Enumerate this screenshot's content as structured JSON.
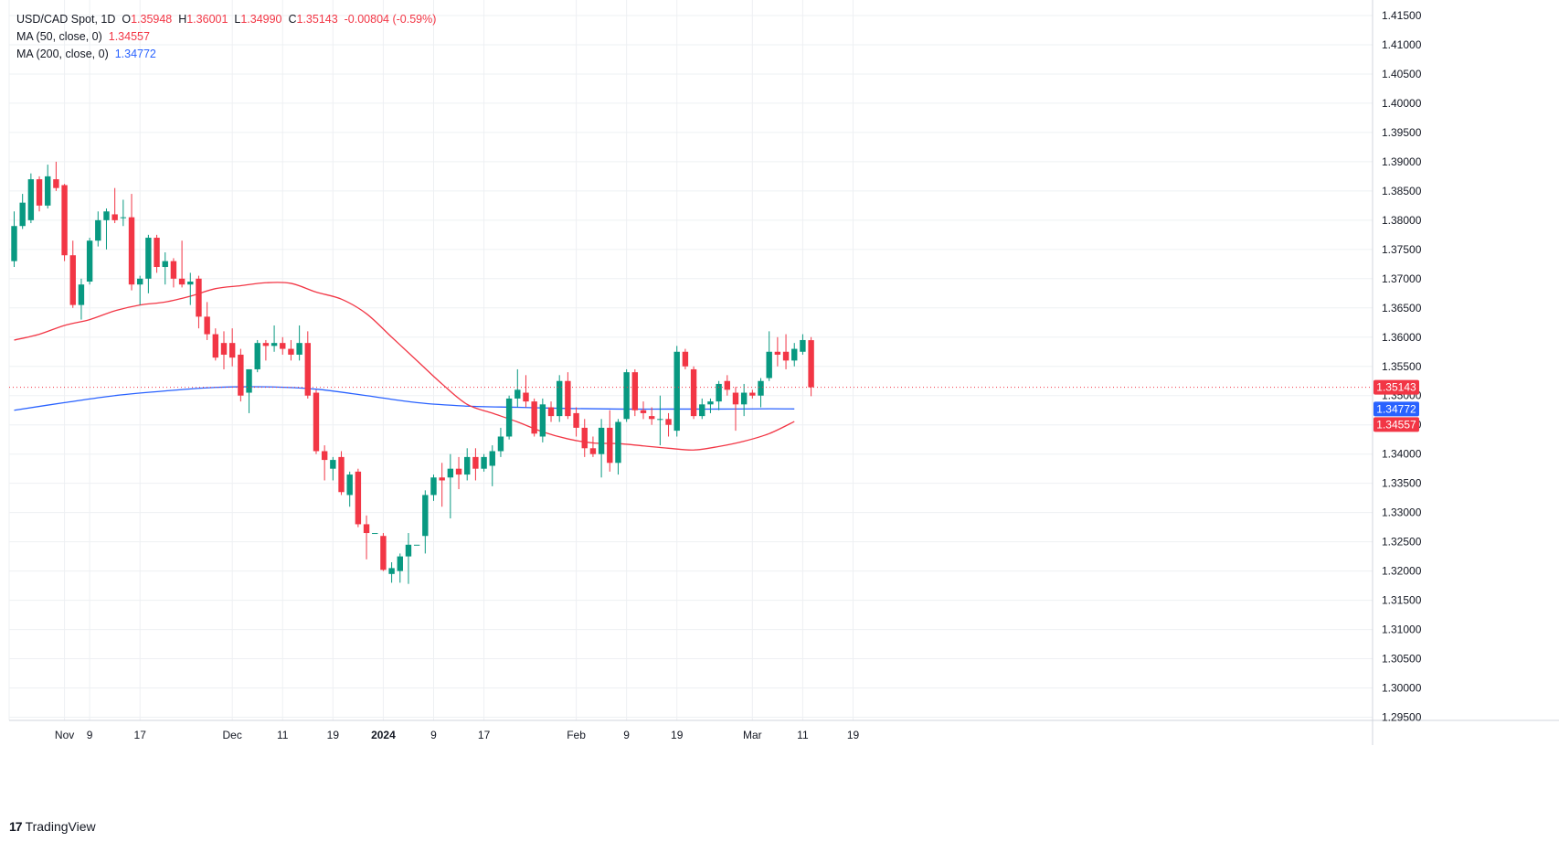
{
  "legend": {
    "symbol": "USD/CAD Spot, 1D",
    "o_label": "O",
    "o": "1.35948",
    "h_label": "H",
    "h": "1.36001",
    "l_label": "L",
    "l": "1.34990",
    "c_label": "C",
    "c": "1.35143",
    "change": "-0.00804 (-0.59%)",
    "ma50_label": "MA (50, close, 0)",
    "ma50_value": "1.34557",
    "ma200_label": "MA (200, close, 0)",
    "ma200_value": "1.34772"
  },
  "branding": {
    "name": "TradingView",
    "mark": "17"
  },
  "colors": {
    "up": "#089981",
    "down": "#f23645",
    "ma50": "#f23645",
    "ma200": "#2962ff",
    "grid": "#eef0f3",
    "axis_text": "#131722"
  },
  "chart_data": {
    "type": "candlestick",
    "title": "USD/CAD Spot, 1D",
    "ylim": [
      1.2925,
      1.4175
    ],
    "y_ticks": [
      "1.29500",
      "1.30000",
      "1.30500",
      "1.31000",
      "1.31500",
      "1.32000",
      "1.32500",
      "1.33000",
      "1.33500",
      "1.34000",
      "1.34500",
      "1.35000",
      "1.35500",
      "1.36000",
      "1.36500",
      "1.37000",
      "1.37500",
      "1.38000",
      "1.38500",
      "1.39000",
      "1.39500",
      "1.40000",
      "1.40500",
      "1.41000",
      "1.41500"
    ],
    "x_ticks": [
      {
        "label": "Nov",
        "day": 6,
        "bold": false
      },
      {
        "label": "9",
        "day": 9,
        "bold": false
      },
      {
        "label": "17",
        "day": 15,
        "bold": false
      },
      {
        "label": "Dec",
        "day": 26,
        "bold": false
      },
      {
        "label": "11",
        "day": 32,
        "bold": false
      },
      {
        "label": "19",
        "day": 38,
        "bold": false
      },
      {
        "label": "2024",
        "day": 44,
        "bold": true
      },
      {
        "label": "9",
        "day": 50,
        "bold": false
      },
      {
        "label": "17",
        "day": 56,
        "bold": false
      },
      {
        "label": "Feb",
        "day": 67,
        "bold": false
      },
      {
        "label": "9",
        "day": 73,
        "bold": false
      },
      {
        "label": "19",
        "day": 79,
        "bold": false
      },
      {
        "label": "Mar",
        "day": 88,
        "bold": false
      },
      {
        "label": "11",
        "day": 94,
        "bold": false
      },
      {
        "label": "19",
        "day": 100,
        "bold": false
      }
    ],
    "candles": [
      {
        "o": 1.373,
        "h": 1.3815,
        "l": 1.372,
        "c": 1.379
      },
      {
        "o": 1.379,
        "h": 1.3845,
        "l": 1.3785,
        "c": 1.383
      },
      {
        "o": 1.38,
        "h": 1.388,
        "l": 1.3795,
        "c": 1.387
      },
      {
        "o": 1.387,
        "h": 1.3875,
        "l": 1.3815,
        "c": 1.3825
      },
      {
        "o": 1.3825,
        "h": 1.3895,
        "l": 1.382,
        "c": 1.3875
      },
      {
        "o": 1.387,
        "h": 1.39,
        "l": 1.385,
        "c": 1.3855
      },
      {
        "o": 1.386,
        "h": 1.3862,
        "l": 1.373,
        "c": 1.374
      },
      {
        "o": 1.374,
        "h": 1.3765,
        "l": 1.365,
        "c": 1.3655
      },
      {
        "o": 1.3655,
        "h": 1.37,
        "l": 1.363,
        "c": 1.369
      },
      {
        "o": 1.3695,
        "h": 1.377,
        "l": 1.369,
        "c": 1.3765
      },
      {
        "o": 1.3765,
        "h": 1.3815,
        "l": 1.3755,
        "c": 1.38
      },
      {
        "o": 1.38,
        "h": 1.382,
        "l": 1.375,
        "c": 1.3815
      },
      {
        "o": 1.381,
        "h": 1.3855,
        "l": 1.3795,
        "c": 1.38
      },
      {
        "o": 1.3805,
        "h": 1.3835,
        "l": 1.379,
        "c": 1.3805
      },
      {
        "o": 1.3805,
        "h": 1.3845,
        "l": 1.368,
        "c": 1.369
      },
      {
        "o": 1.369,
        "h": 1.3705,
        "l": 1.3655,
        "c": 1.37
      },
      {
        "o": 1.37,
        "h": 1.3775,
        "l": 1.3675,
        "c": 1.377
      },
      {
        "o": 1.377,
        "h": 1.3775,
        "l": 1.371,
        "c": 1.372
      },
      {
        "o": 1.372,
        "h": 1.3745,
        "l": 1.369,
        "c": 1.373
      },
      {
        "o": 1.373,
        "h": 1.3735,
        "l": 1.3685,
        "c": 1.37
      },
      {
        "o": 1.37,
        "h": 1.3765,
        "l": 1.3685,
        "c": 1.369
      },
      {
        "o": 1.369,
        "h": 1.371,
        "l": 1.3655,
        "c": 1.3695
      },
      {
        "o": 1.37,
        "h": 1.3705,
        "l": 1.3615,
        "c": 1.3635
      },
      {
        "o": 1.3635,
        "h": 1.366,
        "l": 1.3595,
        "c": 1.3605
      },
      {
        "o": 1.3605,
        "h": 1.3615,
        "l": 1.356,
        "c": 1.3565
      },
      {
        "o": 1.359,
        "h": 1.361,
        "l": 1.3545,
        "c": 1.357
      },
      {
        "o": 1.359,
        "h": 1.3615,
        "l": 1.355,
        "c": 1.3565
      },
      {
        "o": 1.357,
        "h": 1.358,
        "l": 1.349,
        "c": 1.35
      },
      {
        "o": 1.3505,
        "h": 1.3545,
        "l": 1.347,
        "c": 1.3545
      },
      {
        "o": 1.3545,
        "h": 1.3595,
        "l": 1.354,
        "c": 1.359
      },
      {
        "o": 1.359,
        "h": 1.3595,
        "l": 1.356,
        "c": 1.3585
      },
      {
        "o": 1.3585,
        "h": 1.362,
        "l": 1.3575,
        "c": 1.359
      },
      {
        "o": 1.359,
        "h": 1.36,
        "l": 1.357,
        "c": 1.358
      },
      {
        "o": 1.358,
        "h": 1.3595,
        "l": 1.356,
        "c": 1.357
      },
      {
        "o": 1.357,
        "h": 1.362,
        "l": 1.356,
        "c": 1.359
      },
      {
        "o": 1.359,
        "h": 1.361,
        "l": 1.3495,
        "c": 1.35
      },
      {
        "o": 1.3505,
        "h": 1.351,
        "l": 1.34,
        "c": 1.3405
      },
      {
        "o": 1.3405,
        "h": 1.3415,
        "l": 1.3355,
        "c": 1.339
      },
      {
        "o": 1.3375,
        "h": 1.3395,
        "l": 1.3355,
        "c": 1.339
      },
      {
        "o": 1.3395,
        "h": 1.3405,
        "l": 1.333,
        "c": 1.3335
      },
      {
        "o": 1.333,
        "h": 1.337,
        "l": 1.331,
        "c": 1.3365
      },
      {
        "o": 1.337,
        "h": 1.3375,
        "l": 1.3275,
        "c": 1.328
      },
      {
        "o": 1.328,
        "h": 1.3295,
        "l": 1.322,
        "c": 1.3265
      },
      {
        "o": 1.3265,
        "h": 1.3265,
        "l": 1.3265,
        "c": 1.3265
      },
      {
        "o": 1.326,
        "h": 1.3265,
        "l": 1.32,
        "c": 1.3202
      },
      {
        "o": 1.3195,
        "h": 1.3215,
        "l": 1.318,
        "c": 1.3205
      },
      {
        "o": 1.32,
        "h": 1.323,
        "l": 1.318,
        "c": 1.3225
      },
      {
        "o": 1.3225,
        "h": 1.3265,
        "l": 1.3178,
        "c": 1.3245
      },
      {
        "o": 1.3245,
        "h": 1.3245,
        "l": 1.3245,
        "c": 1.3245
      },
      {
        "o": 1.326,
        "h": 1.3338,
        "l": 1.323,
        "c": 1.333
      },
      {
        "o": 1.333,
        "h": 1.3365,
        "l": 1.332,
        "c": 1.336
      },
      {
        "o": 1.336,
        "h": 1.3385,
        "l": 1.331,
        "c": 1.3355
      },
      {
        "o": 1.336,
        "h": 1.34,
        "l": 1.329,
        "c": 1.3375
      },
      {
        "o": 1.3375,
        "h": 1.3395,
        "l": 1.334,
        "c": 1.3365
      },
      {
        "o": 1.3365,
        "h": 1.341,
        "l": 1.3355,
        "c": 1.3395
      },
      {
        "o": 1.3395,
        "h": 1.341,
        "l": 1.3355,
        "c": 1.3375
      },
      {
        "o": 1.3375,
        "h": 1.34,
        "l": 1.337,
        "c": 1.3395
      },
      {
        "o": 1.338,
        "h": 1.3415,
        "l": 1.3345,
        "c": 1.3405
      },
      {
        "o": 1.3405,
        "h": 1.3445,
        "l": 1.3395,
        "c": 1.343
      },
      {
        "o": 1.343,
        "h": 1.35,
        "l": 1.3425,
        "c": 1.3495
      },
      {
        "o": 1.3495,
        "h": 1.3545,
        "l": 1.348,
        "c": 1.351
      },
      {
        "o": 1.3505,
        "h": 1.3535,
        "l": 1.348,
        "c": 1.349
      },
      {
        "o": 1.349,
        "h": 1.3495,
        "l": 1.343,
        "c": 1.3435
      },
      {
        "o": 1.343,
        "h": 1.3495,
        "l": 1.342,
        "c": 1.3485
      },
      {
        "o": 1.348,
        "h": 1.349,
        "l": 1.3455,
        "c": 1.3465
      },
      {
        "o": 1.3465,
        "h": 1.3535,
        "l": 1.3455,
        "c": 1.3525
      },
      {
        "o": 1.3525,
        "h": 1.354,
        "l": 1.346,
        "c": 1.3465
      },
      {
        "o": 1.347,
        "h": 1.348,
        "l": 1.343,
        "c": 1.3445
      },
      {
        "o": 1.3445,
        "h": 1.346,
        "l": 1.3395,
        "c": 1.341
      },
      {
        "o": 1.341,
        "h": 1.343,
        "l": 1.3395,
        "c": 1.34
      },
      {
        "o": 1.34,
        "h": 1.346,
        "l": 1.336,
        "c": 1.3445
      },
      {
        "o": 1.3445,
        "h": 1.3475,
        "l": 1.337,
        "c": 1.3385
      },
      {
        "o": 1.3385,
        "h": 1.346,
        "l": 1.3365,
        "c": 1.3455
      },
      {
        "o": 1.346,
        "h": 1.3545,
        "l": 1.3455,
        "c": 1.354
      },
      {
        "o": 1.354,
        "h": 1.3545,
        "l": 1.3465,
        "c": 1.3475
      },
      {
        "o": 1.3475,
        "h": 1.349,
        "l": 1.346,
        "c": 1.347
      },
      {
        "o": 1.3465,
        "h": 1.348,
        "l": 1.345,
        "c": 1.346
      },
      {
        "o": 1.346,
        "h": 1.35,
        "l": 1.3415,
        "c": 1.346
      },
      {
        "o": 1.346,
        "h": 1.347,
        "l": 1.343,
        "c": 1.345
      },
      {
        "o": 1.344,
        "h": 1.3585,
        "l": 1.343,
        "c": 1.3575
      },
      {
        "o": 1.3575,
        "h": 1.358,
        "l": 1.3545,
        "c": 1.355
      },
      {
        "o": 1.3545,
        "h": 1.355,
        "l": 1.346,
        "c": 1.3465
      },
      {
        "o": 1.3465,
        "h": 1.3495,
        "l": 1.346,
        "c": 1.3485
      },
      {
        "o": 1.3485,
        "h": 1.3495,
        "l": 1.347,
        "c": 1.349
      },
      {
        "o": 1.349,
        "h": 1.3525,
        "l": 1.3475,
        "c": 1.352
      },
      {
        "o": 1.3525,
        "h": 1.3535,
        "l": 1.35,
        "c": 1.351
      },
      {
        "o": 1.3505,
        "h": 1.3515,
        "l": 1.344,
        "c": 1.3485
      },
      {
        "o": 1.3485,
        "h": 1.352,
        "l": 1.3465,
        "c": 1.3505
      },
      {
        "o": 1.3505,
        "h": 1.351,
        "l": 1.3495,
        "c": 1.35
      },
      {
        "o": 1.35,
        "h": 1.353,
        "l": 1.348,
        "c": 1.3525
      },
      {
        "o": 1.353,
        "h": 1.361,
        "l": 1.3525,
        "c": 1.3575
      },
      {
        "o": 1.3575,
        "h": 1.36,
        "l": 1.355,
        "c": 1.357
      },
      {
        "o": 1.3575,
        "h": 1.3605,
        "l": 1.3545,
        "c": 1.356
      },
      {
        "o": 1.356,
        "h": 1.359,
        "l": 1.355,
        "c": 1.358
      },
      {
        "o": 1.3575,
        "h": 1.3605,
        "l": 1.357,
        "c": 1.3595
      },
      {
        "o": 1.35948,
        "h": 1.36001,
        "l": 1.3499,
        "c": 1.35143
      }
    ],
    "ma50": [
      {
        "day": 0,
        "v": 1.3595
      },
      {
        "day": 3,
        "v": 1.3605
      },
      {
        "day": 6,
        "v": 1.362
      },
      {
        "day": 9,
        "v": 1.363
      },
      {
        "day": 12,
        "v": 1.3645
      },
      {
        "day": 15,
        "v": 1.3655
      },
      {
        "day": 18,
        "v": 1.366
      },
      {
        "day": 21,
        "v": 1.367
      },
      {
        "day": 24,
        "v": 1.3683
      },
      {
        "day": 27,
        "v": 1.3688
      },
      {
        "day": 30,
        "v": 1.3693
      },
      {
        "day": 33,
        "v": 1.3692
      },
      {
        "day": 36,
        "v": 1.3677
      },
      {
        "day": 39,
        "v": 1.3665
      },
      {
        "day": 42,
        "v": 1.364
      },
      {
        "day": 45,
        "v": 1.36
      },
      {
        "day": 48,
        "v": 1.356
      },
      {
        "day": 51,
        "v": 1.352
      },
      {
        "day": 54,
        "v": 1.3485
      },
      {
        "day": 57,
        "v": 1.347
      },
      {
        "day": 60,
        "v": 1.3455
      },
      {
        "day": 63,
        "v": 1.3438
      },
      {
        "day": 66,
        "v": 1.3426
      },
      {
        "day": 69,
        "v": 1.3419
      },
      {
        "day": 72,
        "v": 1.3418
      },
      {
        "day": 75,
        "v": 1.3414
      },
      {
        "day": 78,
        "v": 1.341
      },
      {
        "day": 81,
        "v": 1.3407
      },
      {
        "day": 84,
        "v": 1.3413
      },
      {
        "day": 87,
        "v": 1.3422
      },
      {
        "day": 90,
        "v": 1.3435
      },
      {
        "day": 93,
        "v": 1.34557
      }
    ],
    "ma200": [
      {
        "day": 0,
        "v": 1.3475
      },
      {
        "day": 6,
        "v": 1.3488
      },
      {
        "day": 12,
        "v": 1.35
      },
      {
        "day": 18,
        "v": 1.3508
      },
      {
        "day": 24,
        "v": 1.3514
      },
      {
        "day": 30,
        "v": 1.3515
      },
      {
        "day": 36,
        "v": 1.3511
      },
      {
        "day": 42,
        "v": 1.35
      },
      {
        "day": 48,
        "v": 1.3488
      },
      {
        "day": 54,
        "v": 1.3482
      },
      {
        "day": 60,
        "v": 1.348
      },
      {
        "day": 66,
        "v": 1.3478
      },
      {
        "day": 72,
        "v": 1.3477
      },
      {
        "day": 78,
        "v": 1.3477
      },
      {
        "day": 84,
        "v": 1.3477
      },
      {
        "day": 90,
        "v": 1.34775
      },
      {
        "day": 93,
        "v": 1.34772
      }
    ],
    "price_tags": [
      {
        "label": "1.35143",
        "value": 1.35143,
        "color": "#f23645"
      },
      {
        "label": "1.34772",
        "value": 1.34772,
        "color": "#2962ff"
      },
      {
        "label": "1.34557",
        "value": 1.34557,
        "color": "#f23645"
      }
    ],
    "last_price": 1.35143
  }
}
